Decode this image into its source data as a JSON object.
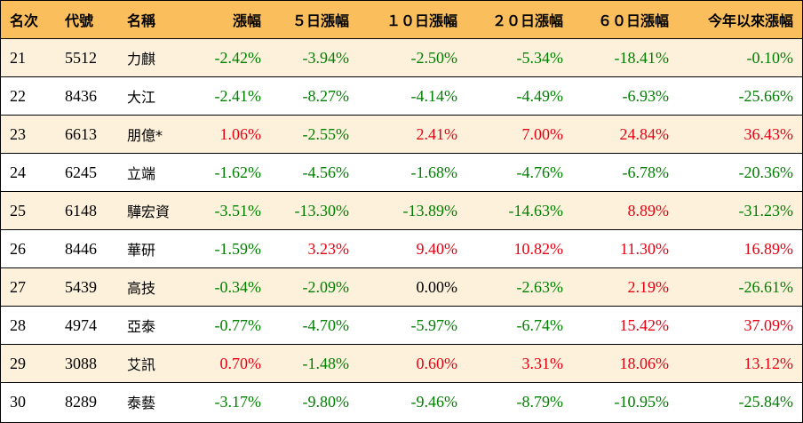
{
  "table": {
    "headers": [
      "名次",
      "代號",
      "名稱",
      "漲幅",
      "５日漲幅",
      "１０日漲幅",
      "２０日漲幅",
      "６０日漲幅",
      "今年以來漲幅"
    ],
    "rows": [
      {
        "rank": "21",
        "code": "5512",
        "name": "力麒",
        "d1": "-2.42%",
        "d5": "-3.94%",
        "d10": "-2.50%",
        "d20": "-5.34%",
        "d60": "-18.41%",
        "ytd": "-0.10%"
      },
      {
        "rank": "22",
        "code": "8436",
        "name": "大江",
        "d1": "-2.41%",
        "d5": "-8.27%",
        "d10": "-4.14%",
        "d20": "-4.49%",
        "d60": "-6.93%",
        "ytd": "-25.66%"
      },
      {
        "rank": "23",
        "code": "6613",
        "name": "朋億*",
        "d1": "1.06%",
        "d5": "-2.55%",
        "d10": "2.41%",
        "d20": "7.00%",
        "d60": "24.84%",
        "ytd": "36.43%"
      },
      {
        "rank": "24",
        "code": "6245",
        "name": "立端",
        "d1": "-1.62%",
        "d5": "-4.56%",
        "d10": "-1.68%",
        "d20": "-4.76%",
        "d60": "-6.78%",
        "ytd": "-20.36%"
      },
      {
        "rank": "25",
        "code": "6148",
        "name": "驊宏資",
        "d1": "-3.51%",
        "d5": "-13.30%",
        "d10": "-13.89%",
        "d20": "-14.63%",
        "d60": "8.89%",
        "ytd": "-31.23%"
      },
      {
        "rank": "26",
        "code": "8446",
        "name": "華研",
        "d1": "-1.59%",
        "d5": "3.23%",
        "d10": "9.40%",
        "d20": "10.82%",
        "d60": "11.30%",
        "ytd": "16.89%"
      },
      {
        "rank": "27",
        "code": "5439",
        "name": "高技",
        "d1": "-0.34%",
        "d5": "-2.09%",
        "d10": "0.00%",
        "d20": "-2.63%",
        "d60": "2.19%",
        "ytd": "-26.61%"
      },
      {
        "rank": "28",
        "code": "4974",
        "name": "亞泰",
        "d1": "-0.77%",
        "d5": "-4.70%",
        "d10": "-5.97%",
        "d20": "-6.74%",
        "d60": "15.42%",
        "ytd": "37.09%"
      },
      {
        "rank": "29",
        "code": "3088",
        "name": "艾訊",
        "d1": "0.70%",
        "d5": "-1.48%",
        "d10": "0.60%",
        "d20": "3.31%",
        "d60": "18.06%",
        "ytd": "13.12%"
      },
      {
        "rank": "30",
        "code": "8289",
        "name": "泰藝",
        "d1": "-3.17%",
        "d5": "-9.80%",
        "d10": "-9.46%",
        "d20": "-8.79%",
        "d60": "-10.95%",
        "ytd": "-25.84%"
      }
    ]
  },
  "colors": {
    "header_bg": "#fbbe5c",
    "stripe_bg": "#fdf1dc",
    "positive": "#e60012",
    "negative": "#008000"
  }
}
